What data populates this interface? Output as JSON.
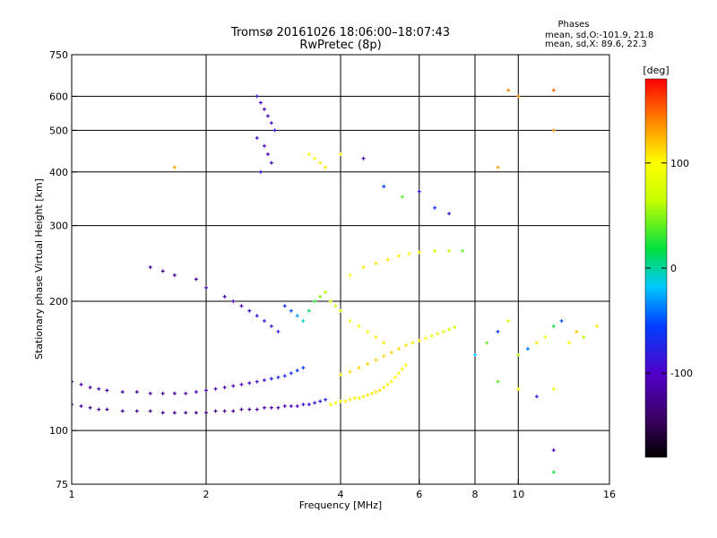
{
  "chart_data": {
    "type": "scatter",
    "title": "Tromsø 20161026 18:06:00–18:07:43",
    "subtitle": "RwPretec (8p)",
    "xlabel": "Frequency [MHz]",
    "ylabel": "Stationary phase Virtual Height [km]",
    "x_scale": "log",
    "y_scale": "log",
    "xlim": [
      1,
      16
    ],
    "ylim": [
      75,
      750
    ],
    "x_ticks": [
      1,
      2,
      4,
      6,
      8,
      10,
      16
    ],
    "x_tick_labels": [
      "1",
      "2",
      "4",
      "6",
      "8",
      "10",
      "16"
    ],
    "x_gridlines": [
      2,
      4,
      6,
      8,
      10
    ],
    "y_ticks": [
      75,
      100,
      200,
      300,
      400,
      500,
      600,
      750
    ],
    "y_tick_labels": [
      "75",
      "100",
      "200",
      "300",
      "400",
      "500",
      "600",
      "750"
    ],
    "y_gridlines": [
      100,
      200,
      300,
      400,
      500,
      600
    ],
    "grid": true,
    "phase_notes": {
      "heading": "Phases",
      "line_o": "mean, sd,O:-101.9, 21.8",
      "line_x": "mean, sd,X:  89.6, 22.3"
    },
    "colorbar": {
      "label": "[deg]",
      "range": [
        -180,
        180
      ],
      "ticks": [
        -100,
        0,
        100
      ],
      "tick_labels": [
        "-100",
        "0",
        "100"
      ],
      "colormap": "rainbow: black-purple-blue-cyan-green-yellow-orange-red"
    },
    "series": [
      {
        "trace": "O-mode lower trace",
        "points": [
          [
            1.0,
            115,
            -115
          ],
          [
            1.05,
            114,
            -116
          ],
          [
            1.1,
            113,
            -118
          ],
          [
            1.15,
            112,
            -119
          ],
          [
            1.2,
            112,
            -120
          ],
          [
            1.3,
            111,
            -122
          ],
          [
            1.4,
            111,
            -123
          ],
          [
            1.5,
            111,
            -124
          ],
          [
            1.6,
            110,
            -125
          ],
          [
            1.7,
            110,
            -126
          ],
          [
            1.8,
            110,
            -126
          ],
          [
            1.9,
            110,
            -126
          ],
          [
            2.0,
            110,
            -127
          ],
          [
            2.1,
            111,
            -126
          ],
          [
            2.2,
            111,
            -124
          ],
          [
            2.3,
            111,
            -122
          ],
          [
            2.4,
            112,
            -120
          ],
          [
            2.5,
            112,
            -118
          ],
          [
            2.6,
            112,
            -116
          ],
          [
            2.7,
            113,
            -114
          ],
          [
            2.8,
            113,
            -112
          ],
          [
            2.9,
            113,
            -110
          ],
          [
            3.0,
            114,
            -108
          ],
          [
            3.1,
            114,
            -106
          ],
          [
            3.2,
            114,
            -100
          ],
          [
            3.3,
            115,
            -95
          ],
          [
            3.4,
            115,
            -90
          ],
          [
            3.5,
            116,
            -85
          ],
          [
            3.6,
            117,
            -80
          ],
          [
            3.7,
            118,
            -75
          ]
        ]
      },
      {
        "trace": "O-mode upper trace",
        "points": [
          [
            1.0,
            130,
            -105
          ],
          [
            1.05,
            128,
            -108
          ],
          [
            1.1,
            126,
            -110
          ],
          [
            1.15,
            125,
            -112
          ],
          [
            1.2,
            124,
            -114
          ],
          [
            1.3,
            123,
            -116
          ],
          [
            1.4,
            123,
            -118
          ],
          [
            1.5,
            122,
            -118
          ],
          [
            1.6,
            122,
            -118
          ],
          [
            1.7,
            122,
            -116
          ],
          [
            1.8,
            122,
            -114
          ],
          [
            1.9,
            123,
            -112
          ],
          [
            2.0,
            124,
            -110
          ],
          [
            2.1,
            125,
            -108
          ],
          [
            2.2,
            126,
            -106
          ],
          [
            2.3,
            127,
            -104
          ],
          [
            2.4,
            128,
            -100
          ],
          [
            2.5,
            129,
            -95
          ],
          [
            2.6,
            130,
            -90
          ],
          [
            2.7,
            131,
            -85
          ],
          [
            2.8,
            132,
            -80
          ],
          [
            2.9,
            133,
            -75
          ],
          [
            3.0,
            134,
            -70
          ],
          [
            3.1,
            136,
            -65
          ],
          [
            3.2,
            138,
            -60
          ],
          [
            3.3,
            140,
            -55
          ]
        ]
      },
      {
        "trace": "X-mode lower trace",
        "points": [
          [
            3.8,
            115,
            100
          ],
          [
            3.9,
            116,
            101
          ],
          [
            4.0,
            117,
            102
          ],
          [
            4.1,
            117,
            103
          ],
          [
            4.2,
            118,
            104
          ],
          [
            4.3,
            119,
            105
          ],
          [
            4.4,
            119,
            106
          ],
          [
            4.5,
            120,
            107
          ],
          [
            4.6,
            121,
            108
          ],
          [
            4.7,
            122,
            109
          ],
          [
            4.8,
            123,
            110
          ],
          [
            4.9,
            124,
            110
          ],
          [
            5.0,
            126,
            108
          ],
          [
            5.1,
            128,
            106
          ],
          [
            5.2,
            130,
            104
          ],
          [
            5.3,
            133,
            102
          ],
          [
            5.4,
            136,
            100
          ],
          [
            5.5,
            139,
            98
          ],
          [
            5.6,
            142,
            96
          ]
        ]
      },
      {
        "trace": "X-mode upper trace",
        "points": [
          [
            4.0,
            135,
            110
          ],
          [
            4.2,
            137,
            112
          ],
          [
            4.4,
            140,
            115
          ],
          [
            4.6,
            143,
            116
          ],
          [
            4.8,
            146,
            116
          ],
          [
            5.0,
            149,
            115
          ],
          [
            5.2,
            152,
            114
          ],
          [
            5.4,
            155,
            112
          ],
          [
            5.6,
            158,
            110
          ],
          [
            5.8,
            160,
            108
          ],
          [
            6.0,
            162,
            105
          ],
          [
            6.2,
            164,
            100
          ],
          [
            6.4,
            166,
            95
          ],
          [
            6.6,
            168,
            90
          ],
          [
            6.8,
            170,
            85
          ],
          [
            7.0,
            172,
            80
          ],
          [
            7.2,
            174,
            75
          ]
        ]
      },
      {
        "trace": "F2 echoes 180-280 km",
        "points": [
          [
            1.5,
            240,
            -120
          ],
          [
            1.6,
            235,
            -125
          ],
          [
            1.7,
            230,
            -120
          ],
          [
            1.9,
            225,
            -115
          ],
          [
            2.0,
            215,
            -110
          ],
          [
            2.2,
            205,
            -108
          ],
          [
            2.3,
            200,
            -105
          ],
          [
            2.4,
            195,
            -100
          ],
          [
            2.5,
            190,
            -95
          ],
          [
            2.6,
            185,
            -90
          ],
          [
            2.7,
            180,
            -85
          ],
          [
            2.8,
            175,
            -80
          ],
          [
            2.9,
            170,
            -75
          ],
          [
            3.0,
            195,
            -70
          ],
          [
            3.1,
            190,
            -50
          ],
          [
            3.2,
            185,
            -30
          ],
          [
            3.3,
            180,
            -10
          ],
          [
            3.4,
            190,
            10
          ],
          [
            3.5,
            200,
            30
          ],
          [
            3.6,
            205,
            50
          ],
          [
            3.7,
            210,
            60
          ],
          [
            3.8,
            200,
            70
          ],
          [
            3.9,
            195,
            75
          ],
          [
            4.0,
            190,
            80
          ],
          [
            4.2,
            180,
            90
          ],
          [
            4.4,
            175,
            95
          ],
          [
            4.6,
            170,
            100
          ],
          [
            4.8,
            165,
            105
          ],
          [
            5.0,
            160,
            110
          ],
          [
            4.2,
            230,
            100
          ],
          [
            4.5,
            240,
            105
          ],
          [
            4.8,
            245,
            110
          ],
          [
            5.1,
            250,
            108
          ],
          [
            5.4,
            255,
            105
          ],
          [
            5.7,
            258,
            100
          ],
          [
            6.0,
            260,
            95
          ],
          [
            6.5,
            262,
            80
          ],
          [
            7.0,
            262,
            60
          ],
          [
            7.5,
            262,
            40
          ]
        ]
      },
      {
        "trace": "scattered echoes above 300 km",
        "points": [
          [
            2.6,
            600,
            -90
          ],
          [
            2.65,
            580,
            -95
          ],
          [
            2.7,
            560,
            -100
          ],
          [
            2.75,
            540,
            -95
          ],
          [
            2.8,
            520,
            -90
          ],
          [
            2.85,
            500,
            -85
          ],
          [
            2.6,
            480,
            -95
          ],
          [
            2.7,
            460,
            -100
          ],
          [
            2.75,
            440,
            -105
          ],
          [
            2.8,
            420,
            -95
          ],
          [
            2.65,
            400,
            -90
          ],
          [
            3.4,
            440,
            95
          ],
          [
            3.5,
            430,
            100
          ],
          [
            3.6,
            420,
            105
          ],
          [
            3.7,
            410,
            110
          ],
          [
            4.0,
            440,
            105
          ],
          [
            4.5,
            430,
            -110
          ],
          [
            5.0,
            370,
            -60
          ],
          [
            5.5,
            350,
            40
          ],
          [
            6.0,
            360,
            -80
          ],
          [
            6.5,
            330,
            -70
          ],
          [
            7.0,
            320,
            -90
          ],
          [
            9.5,
            620,
            140
          ],
          [
            10.0,
            600,
            140
          ],
          [
            12.0,
            620,
            150
          ],
          [
            12.0,
            500,
            140
          ],
          [
            9.0,
            410,
            130
          ],
          [
            1.7,
            410,
            130
          ]
        ]
      },
      {
        "trace": "scattered echoes at high frequency",
        "points": [
          [
            8.0,
            150,
            -20
          ],
          [
            8.5,
            160,
            40
          ],
          [
            9.0,
            170,
            -60
          ],
          [
            9.5,
            180,
            80
          ],
          [
            10.0,
            150,
            60
          ],
          [
            10.5,
            155,
            -40
          ],
          [
            11.0,
            160,
            110
          ],
          [
            11.5,
            165,
            90
          ],
          [
            12.0,
            175,
            20
          ],
          [
            12.5,
            180,
            -50
          ],
          [
            13.0,
            160,
            100
          ],
          [
            13.5,
            170,
            120
          ],
          [
            14.0,
            165,
            60
          ],
          [
            15.0,
            175,
            110
          ],
          [
            9.0,
            130,
            40
          ],
          [
            10.0,
            125,
            100
          ],
          [
            11.0,
            120,
            -80
          ],
          [
            12.0,
            125,
            90
          ],
          [
            12.0,
            90,
            -100
          ],
          [
            12.0,
            80,
            20
          ]
        ]
      }
    ]
  }
}
